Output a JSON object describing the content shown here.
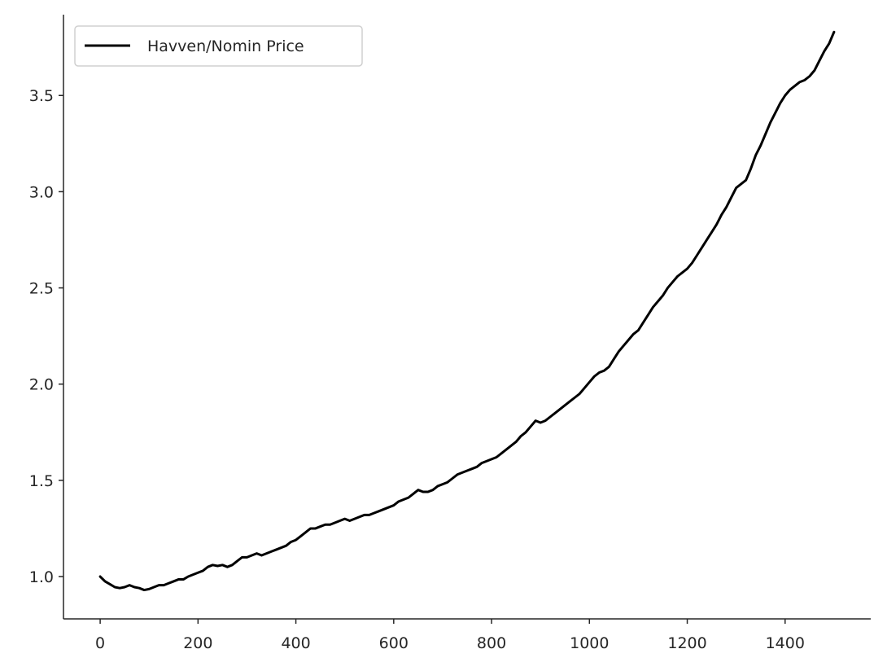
{
  "chart_data": {
    "type": "line",
    "title": "",
    "xlabel": "",
    "ylabel": "",
    "xlim": [
      -75,
      1575
    ],
    "ylim": [
      0.78,
      3.92
    ],
    "x_ticks": [
      0,
      200,
      400,
      600,
      800,
      1000,
      1200,
      1400
    ],
    "x_tick_labels": [
      "0",
      "200",
      "400",
      "600",
      "800",
      "1000",
      "1200",
      "1400"
    ],
    "y_ticks": [
      1.0,
      1.5,
      2.0,
      2.5,
      3.0,
      3.5
    ],
    "y_tick_labels": [
      "1.0",
      "1.5",
      "2.0",
      "2.5",
      "3.0",
      "3.5"
    ],
    "grid": false,
    "legend_position": "top-left",
    "series": [
      {
        "name": "Havven/Nomin Price",
        "color": "#000000",
        "x": [
          0,
          10,
          20,
          30,
          40,
          50,
          60,
          70,
          80,
          90,
          100,
          110,
          120,
          130,
          140,
          150,
          160,
          170,
          180,
          190,
          200,
          210,
          220,
          230,
          240,
          250,
          260,
          270,
          280,
          290,
          300,
          310,
          320,
          330,
          340,
          350,
          360,
          370,
          380,
          390,
          400,
          410,
          420,
          430,
          440,
          450,
          460,
          470,
          480,
          490,
          500,
          510,
          520,
          530,
          540,
          550,
          560,
          570,
          580,
          590,
          600,
          610,
          620,
          630,
          640,
          650,
          660,
          670,
          680,
          690,
          700,
          710,
          720,
          730,
          740,
          750,
          760,
          770,
          780,
          790,
          800,
          810,
          820,
          830,
          840,
          850,
          860,
          870,
          880,
          890,
          900,
          910,
          920,
          930,
          940,
          950,
          960,
          970,
          980,
          990,
          1000,
          1010,
          1020,
          1030,
          1040,
          1050,
          1060,
          1070,
          1080,
          1090,
          1100,
          1110,
          1120,
          1130,
          1140,
          1150,
          1160,
          1170,
          1180,
          1190,
          1200,
          1210,
          1220,
          1230,
          1240,
          1250,
          1260,
          1270,
          1280,
          1290,
          1300,
          1310,
          1320,
          1330,
          1340,
          1350,
          1360,
          1370,
          1380,
          1390,
          1400,
          1410,
          1420,
          1430,
          1440,
          1450,
          1460,
          1470,
          1480,
          1490,
          1500
        ],
        "values": [
          1.0,
          0.975,
          0.96,
          0.945,
          0.94,
          0.945,
          0.955,
          0.945,
          0.94,
          0.93,
          0.935,
          0.945,
          0.955,
          0.955,
          0.965,
          0.975,
          0.985,
          0.985,
          1.0,
          1.01,
          1.02,
          1.03,
          1.05,
          1.06,
          1.055,
          1.06,
          1.05,
          1.06,
          1.08,
          1.1,
          1.1,
          1.11,
          1.12,
          1.11,
          1.12,
          1.13,
          1.14,
          1.15,
          1.16,
          1.18,
          1.19,
          1.21,
          1.23,
          1.25,
          1.25,
          1.26,
          1.27,
          1.27,
          1.28,
          1.29,
          1.3,
          1.29,
          1.3,
          1.31,
          1.32,
          1.32,
          1.33,
          1.34,
          1.35,
          1.36,
          1.37,
          1.39,
          1.4,
          1.41,
          1.43,
          1.45,
          1.44,
          1.44,
          1.45,
          1.47,
          1.48,
          1.49,
          1.51,
          1.53,
          1.54,
          1.55,
          1.56,
          1.57,
          1.59,
          1.6,
          1.61,
          1.62,
          1.64,
          1.66,
          1.68,
          1.7,
          1.73,
          1.75,
          1.78,
          1.81,
          1.8,
          1.81,
          1.83,
          1.85,
          1.87,
          1.89,
          1.91,
          1.93,
          1.95,
          1.98,
          2.01,
          2.04,
          2.06,
          2.07,
          2.09,
          2.13,
          2.17,
          2.2,
          2.23,
          2.26,
          2.28,
          2.32,
          2.36,
          2.4,
          2.43,
          2.46,
          2.5,
          2.53,
          2.56,
          2.58,
          2.6,
          2.63,
          2.67,
          2.71,
          2.75,
          2.79,
          2.83,
          2.88,
          2.92,
          2.97,
          3.02,
          3.04,
          3.06,
          3.12,
          3.19,
          3.24,
          3.3,
          3.36,
          3.41,
          3.46,
          3.5,
          3.53,
          3.55,
          3.57,
          3.58,
          3.6,
          3.63,
          3.68,
          3.73,
          3.77,
          3.83
        ]
      }
    ]
  }
}
